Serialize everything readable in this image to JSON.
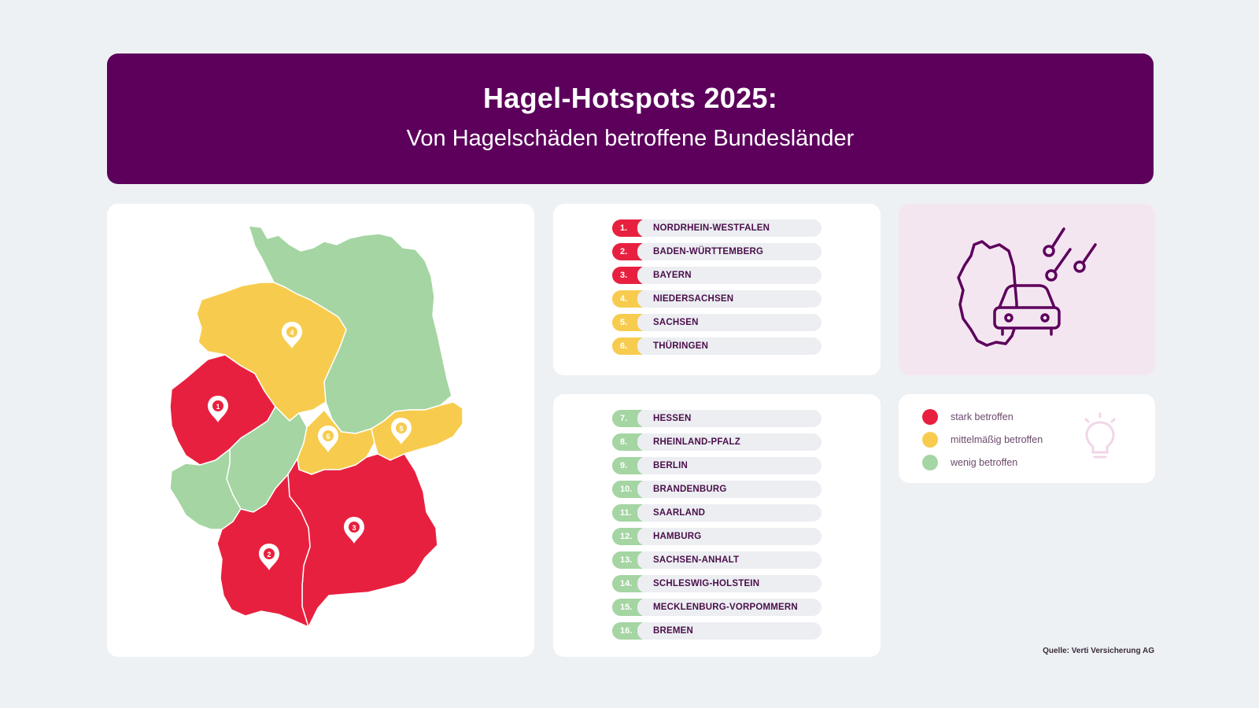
{
  "header": {
    "title": "Hagel-Hotspots 2025:",
    "subtitle": "Von Hagelschäden betroffene Bundesländer"
  },
  "colors": {
    "stark": "#e8203f",
    "mittel": "#f7cc4e",
    "wenig": "#a4d5a2",
    "brand": "#5c005c"
  },
  "map": {
    "markers": [
      {
        "label": "1",
        "state": "Nordrhein-Westfalen"
      },
      {
        "label": "2",
        "state": "Baden-Württemberg"
      },
      {
        "label": "3",
        "state": "Bayern"
      },
      {
        "label": "4",
        "state": "Niedersachsen"
      },
      {
        "label": "5",
        "state": "Sachsen"
      },
      {
        "label": "6",
        "state": "Thüringen"
      }
    ]
  },
  "ranking_top": [
    {
      "rank": "1.",
      "name": "NORDRHEIN-WESTFALEN",
      "level": "stark"
    },
    {
      "rank": "2.",
      "name": "BADEN-WÜRTTEMBERG",
      "level": "stark"
    },
    {
      "rank": "3.",
      "name": "BAYERN",
      "level": "stark"
    },
    {
      "rank": "4.",
      "name": "NIEDERSACHSEN",
      "level": "mittel"
    },
    {
      "rank": "5.",
      "name": "SACHSEN",
      "level": "mittel"
    },
    {
      "rank": "6.",
      "name": "THÜRINGEN",
      "level": "mittel"
    }
  ],
  "ranking_bottom": [
    {
      "rank": "7.",
      "name": "HESSEN",
      "level": "wenig"
    },
    {
      "rank": "8.",
      "name": "RHEINLAND-PFALZ",
      "level": "wenig"
    },
    {
      "rank": "9.",
      "name": "BERLIN",
      "level": "wenig"
    },
    {
      "rank": "10.",
      "name": "BRANDENBURG",
      "level": "wenig"
    },
    {
      "rank": "11.",
      "name": "SAARLAND",
      "level": "wenig"
    },
    {
      "rank": "12.",
      "name": "HAMBURG",
      "level": "wenig"
    },
    {
      "rank": "13.",
      "name": "SACHSEN-ANHALT",
      "level": "wenig"
    },
    {
      "rank": "14.",
      "name": "SCHLESWIG-HOLSTEIN",
      "level": "wenig"
    },
    {
      "rank": "15.",
      "name": "MECKLENBURG-VORPOMMERN",
      "level": "wenig"
    },
    {
      "rank": "16.",
      "name": "BREMEN",
      "level": "wenig"
    }
  ],
  "legend": [
    {
      "label": "stark betroffen",
      "level": "stark"
    },
    {
      "label": "mittelmäßig betroffen",
      "level": "mittel"
    },
    {
      "label": "wenig betroffen",
      "level": "wenig"
    }
  ],
  "icons": {
    "illustration": "germany-car-hail-icon",
    "lightbulb": "lightbulb-icon"
  },
  "source": "Quelle: Verti Versicherung AG"
}
